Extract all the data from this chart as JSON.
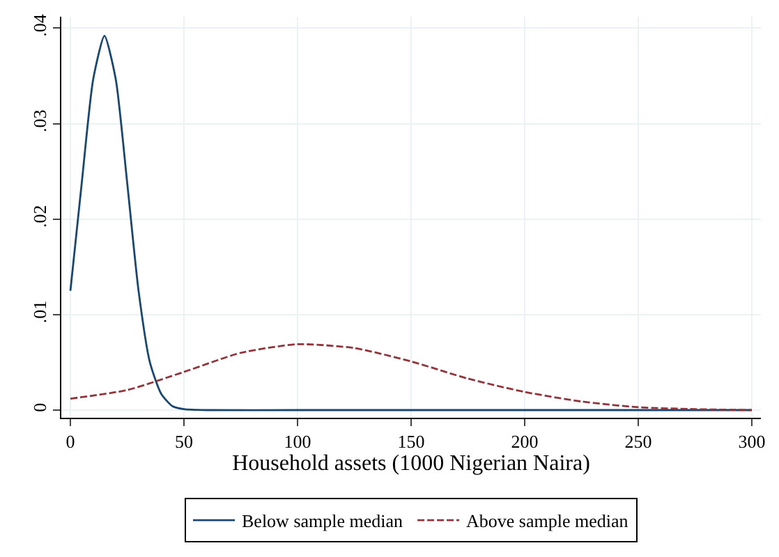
{
  "chart_data": {
    "type": "line",
    "xlabel": "Household assets (1000 Nigerian Naira)",
    "xlim": [
      -4,
      304
    ],
    "xticks": [
      0,
      50,
      100,
      150,
      200,
      250,
      300
    ],
    "ylim": [
      -0.0008,
      0.0412
    ],
    "yticks": [
      {
        "value": 0,
        "label": "0"
      },
      {
        "value": 0.01,
        "label": ".01"
      },
      {
        "value": 0.02,
        "label": ".02"
      },
      {
        "value": 0.03,
        "label": ".03"
      },
      {
        "value": 0.04,
        "label": ".04"
      }
    ],
    "grid": true,
    "legend": "bottom",
    "marker": "none",
    "series": [
      {
        "name": "Below sample median",
        "color": "#1a476f",
        "line_style": "solid",
        "x": [
          0,
          5,
          10,
          15,
          20,
          25,
          30,
          35,
          40,
          45,
          50,
          60,
          100,
          150,
          200,
          250,
          300
        ],
        "values": [
          0.0125,
          0.0238,
          0.0346,
          0.0392,
          0.0346,
          0.0238,
          0.0125,
          0.005,
          0.0017,
          0.0004,
          0.0001,
          0,
          0,
          0,
          0,
          0,
          0
        ]
      },
      {
        "name": "Above sample median",
        "color": "#90353b",
        "line_style": "dashed",
        "x": [
          0,
          25,
          50,
          75,
          100,
          125,
          150,
          175,
          200,
          225,
          250,
          275,
          300
        ],
        "values": [
          0.0012,
          0.0021,
          0.004,
          0.006,
          0.0069,
          0.0065,
          0.0051,
          0.0033,
          0.0019,
          0.0009,
          0.0003,
          0.0001,
          0
        ]
      }
    ]
  }
}
